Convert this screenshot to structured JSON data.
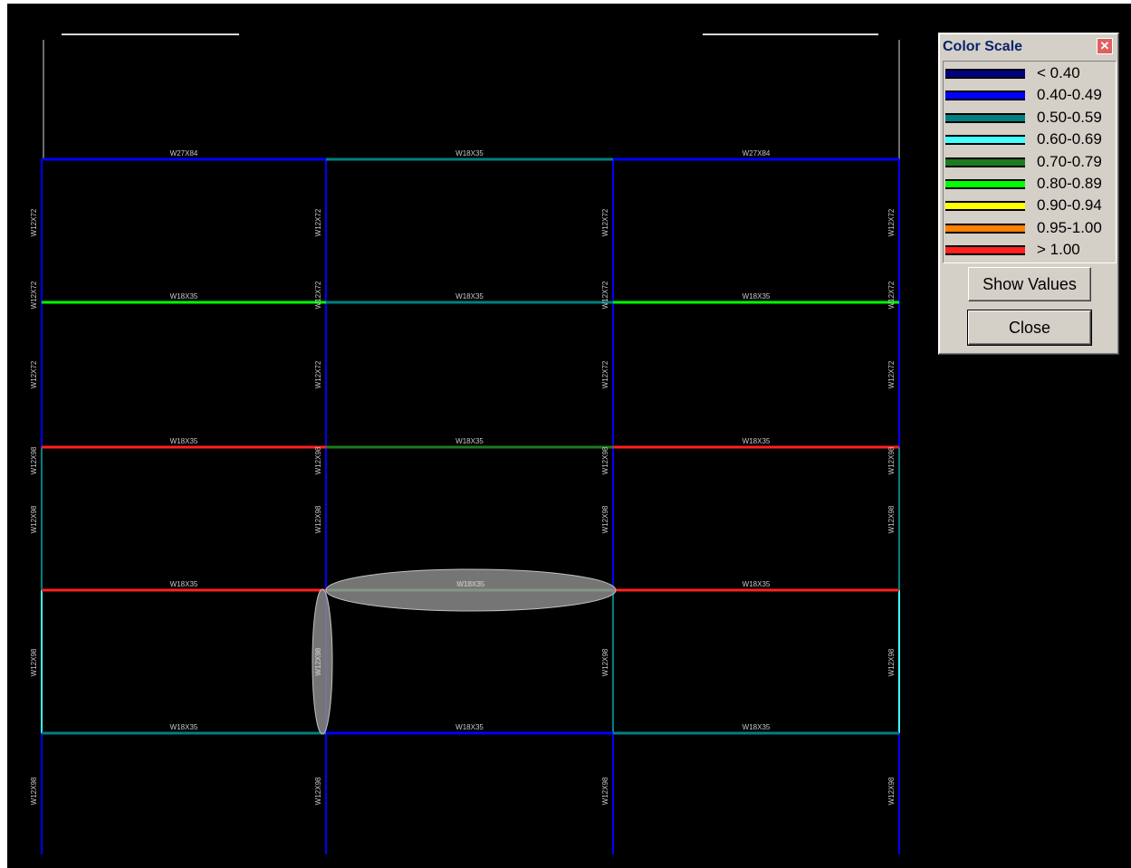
{
  "drawing": {
    "beam_labels": {
      "roof": [
        "W27X84",
        "W18X35",
        "W27X84"
      ],
      "floor": [
        "W18X35",
        "W18X35",
        "W18X35"
      ]
    },
    "column_labels": [
      "W12X72",
      "W12X98"
    ],
    "colors": {
      "roof_outer": "#0000ff",
      "roof_mid": "#008080",
      "level2_outer": "#00ff00",
      "level2_mid": "#008080",
      "red": "#ff2020",
      "green_dark": "#1e7a1e",
      "blue": "#0000ff",
      "teal": "#008080",
      "cyan": "#40ffff"
    }
  },
  "panel": {
    "title": "Color Scale",
    "legend": [
      {
        "label": "< 0.40",
        "color": "#000080"
      },
      {
        "label": "0.40-0.49",
        "color": "#0000ff"
      },
      {
        "label": "0.50-0.59",
        "color": "#008080"
      },
      {
        "label": "0.60-0.69",
        "color": "#40ffff"
      },
      {
        "label": "0.70-0.79",
        "color": "#1e7a1e"
      },
      {
        "label": "0.80-0.89",
        "color": "#00ff00"
      },
      {
        "label": "0.90-0.94",
        "color": "#ffff00"
      },
      {
        "label": "0.95-1.00",
        "color": "#ff8000"
      },
      {
        "label": "> 1.00",
        "color": "#ff2020"
      }
    ],
    "show_values_label": "Show Values",
    "close_label": "Close"
  }
}
